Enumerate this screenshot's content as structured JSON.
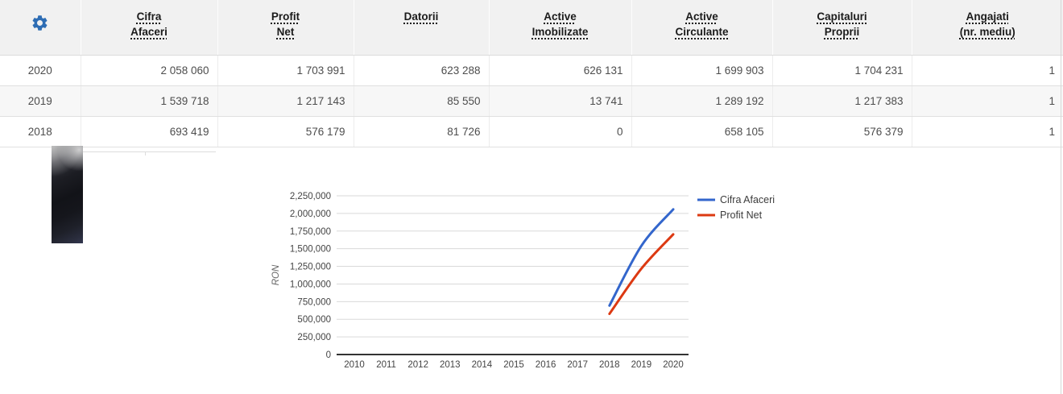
{
  "colors": {
    "gear_blue": "#2e6db4",
    "header_bg": "#f1f1f1",
    "row_alt_bg": "#f7f7f7",
    "border": "#e0e0e0",
    "series_blue": "#3366CC",
    "series_red": "#DC3912",
    "gridline": "#d9d9d9",
    "axis": "#333333"
  },
  "table": {
    "columns": [
      {
        "id": "cifra-afaceri",
        "lines": [
          "Cifra",
          "Afaceri"
        ]
      },
      {
        "id": "profit-net",
        "lines": [
          "Profit",
          "Net"
        ]
      },
      {
        "id": "datorii",
        "lines": [
          "Datorii"
        ]
      },
      {
        "id": "active-imobilizate",
        "lines": [
          "Active",
          "Imobilizate"
        ]
      },
      {
        "id": "active-circulante",
        "lines": [
          "Active",
          "Circulante"
        ]
      },
      {
        "id": "capitaluri-proprii",
        "lines": [
          "Capitaluri",
          "Proprii"
        ]
      },
      {
        "id": "angajati",
        "lines": [
          "Angajati",
          "(nr. mediu)"
        ]
      }
    ],
    "rows": [
      {
        "year": "2020",
        "values": [
          "2 058 060",
          "1 703 991",
          "623 288",
          "626 131",
          "1 699 903",
          "1 704 231",
          "1"
        ]
      },
      {
        "year": "2019",
        "values": [
          "1 539 718",
          "1 217 143",
          "85 550",
          "13 741",
          "1 289 192",
          "1 217 383",
          "1"
        ]
      },
      {
        "year": "2018",
        "values": [
          "693 419",
          "576 179",
          "81 726",
          "0",
          "658 105",
          "576 379",
          "1"
        ]
      }
    ]
  },
  "chart_data": {
    "type": "line",
    "curve": "smooth",
    "x": [
      2018,
      2019,
      2020
    ],
    "x_axis_ticks": [
      "2010",
      "2011",
      "2012",
      "2013",
      "2014",
      "2015",
      "2016",
      "2017",
      "2018",
      "2019",
      "2020"
    ],
    "series": [
      {
        "name": "Cifra Afaceri",
        "color": "#3366CC",
        "values": [
          693419,
          1539718,
          2058060
        ]
      },
      {
        "name": "Profit Net",
        "color": "#DC3912",
        "values": [
          576179,
          1217143,
          1703991
        ]
      }
    ],
    "ylabel": "RON",
    "ylim": [
      0,
      2250000
    ],
    "ytick_step": 250000,
    "ytick_labels": [
      "0",
      "250,000",
      "500,000",
      "750,000",
      "1,000,000",
      "1,250,000",
      "1,500,000",
      "1,750,000",
      "2,000,000",
      "2,250,000"
    ],
    "grid": true,
    "legend_position": "right"
  }
}
